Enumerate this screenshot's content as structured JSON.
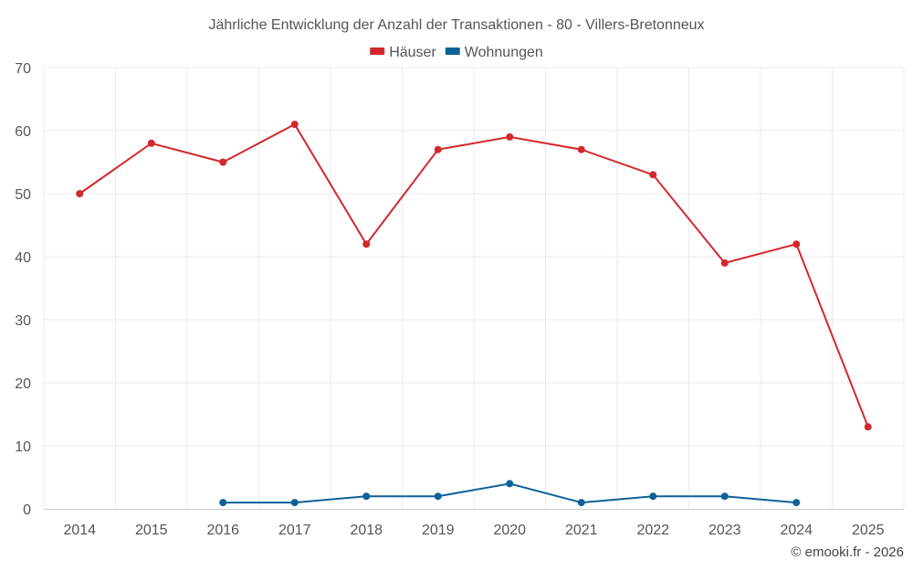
{
  "chart_data": {
    "type": "line",
    "title": "Jährliche Entwicklung der Anzahl der Transaktionen - 80 - Villers-Bretonneux",
    "categories": [
      "2014",
      "2015",
      "2016",
      "2017",
      "2018",
      "2019",
      "2020",
      "2021",
      "2022",
      "2023",
      "2024",
      "2025"
    ],
    "series": [
      {
        "name": "Häuser",
        "color": "#d3282b",
        "values": [
          50,
          58,
          55,
          61,
          42,
          57,
          59,
          57,
          53,
          39,
          42,
          13
        ]
      },
      {
        "name": "Wohnungen",
        "color": "#0e6198",
        "values": [
          null,
          null,
          1,
          1,
          2,
          2,
          4,
          1,
          2,
          2,
          1,
          null
        ]
      }
    ],
    "ylim": [
      0,
      70
    ],
    "yticks": [
      0,
      10,
      20,
      30,
      40,
      50,
      60,
      70
    ],
    "xlabel": "",
    "ylabel": "",
    "grid": true,
    "legend_position": "top-center"
  },
  "credit": "© emooki.fr - 2026"
}
